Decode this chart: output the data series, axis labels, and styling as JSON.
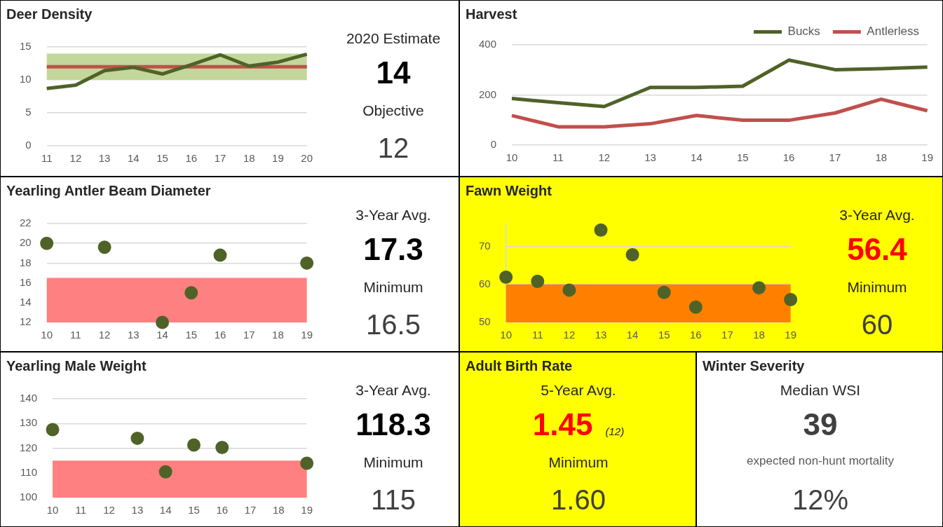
{
  "chart_data": [
    {
      "type": "line",
      "title": "Deer Density",
      "categories": [
        "11",
        "12",
        "13",
        "14",
        "15",
        "16",
        "17",
        "18",
        "19",
        "20"
      ],
      "series": [
        {
          "color": "#4f6228",
          "values": [
            8.7,
            9.2,
            11.4,
            11.9,
            10.9,
            12.3,
            13.8,
            12.1,
            12.7,
            13.9
          ]
        }
      ],
      "ylim": [
        0,
        15
      ],
      "yticks": [
        0,
        5,
        10,
        15
      ],
      "grid": "y",
      "marker": "none",
      "legend": false,
      "bands": [
        {
          "axis": "y",
          "from": 10,
          "to": 14,
          "color": "#c3d69b"
        }
      ],
      "ref_lines": [
        {
          "axis": "y",
          "value": 12,
          "color": "#c0504d"
        }
      ],
      "annotations": [
        "2020 Estimate",
        "14",
        "Objective",
        "12"
      ]
    },
    {
      "type": "line",
      "title": "Harvest",
      "categories": [
        "10",
        "11",
        "12",
        "13",
        "14",
        "15",
        "16",
        "17",
        "18",
        "19"
      ],
      "series": [
        {
          "name": "Bucks",
          "color": "#4f6228",
          "values": [
            186,
            169,
            154,
            230,
            230,
            235,
            339,
            301,
            305,
            311
          ]
        },
        {
          "name": "Antlerless",
          "color": "#c0504d",
          "values": [
            118,
            73,
            73,
            85,
            118,
            99,
            99,
            128,
            183,
            137
          ]
        }
      ],
      "ylim": [
        0,
        400
      ],
      "yticks": [
        0,
        200,
        400
      ],
      "grid": "y",
      "marker": "none",
      "legend": "top right"
    },
    {
      "type": "scatter",
      "title": "Yearling Antler Beam Diameter",
      "categories": [
        "10",
        "11",
        "12",
        "13",
        "14",
        "15",
        "16",
        "17",
        "18",
        "19"
      ],
      "series": [
        {
          "color": "#4f6228",
          "values": [
            20.0,
            null,
            19.6,
            null,
            12.0,
            15.0,
            18.8,
            null,
            null,
            18.0
          ]
        }
      ],
      "ylim": [
        12,
        22
      ],
      "yticks": [
        12,
        14,
        16,
        18,
        20,
        22
      ],
      "grid": "y",
      "marker": "circle",
      "legend": false,
      "bands": [
        {
          "axis": "y",
          "from": 12,
          "to": 16.5,
          "color": "#ff8080"
        }
      ],
      "annotations": [
        "3-Year Avg.",
        "17.3",
        "Minimum",
        "16.5"
      ]
    },
    {
      "type": "scatter",
      "title": "Fawn Weight",
      "categories": [
        "10",
        "11",
        "12",
        "13",
        "14",
        "15",
        "16",
        "17",
        "18",
        "19"
      ],
      "series": [
        {
          "color": "#4f6228",
          "values": [
            61.9,
            60.8,
            58.5,
            74.3,
            67.8,
            57.9,
            54.0,
            null,
            59.1,
            56.0
          ]
        }
      ],
      "ylim": [
        50,
        76
      ],
      "yticks": [
        50,
        60,
        70
      ],
      "grid": "y",
      "marker": "circle",
      "legend": false,
      "bands": [
        {
          "axis": "y",
          "from": 50,
          "to": 60,
          "color": "#ff8000"
        }
      ],
      "annotations": [
        "3-Year Avg.",
        "56.4",
        "Minimum",
        "60"
      ]
    },
    {
      "type": "scatter",
      "title": "Yearling Male Weight",
      "categories": [
        "10",
        "11",
        "12",
        "13",
        "14",
        "15",
        "16",
        "17",
        "18",
        "19"
      ],
      "series": [
        {
          "color": "#4f6228",
          "values": [
            127.5,
            null,
            null,
            124.0,
            110.4,
            121.3,
            120.3,
            null,
            null,
            113.9
          ]
        }
      ],
      "ylim": [
        100,
        140
      ],
      "yticks": [
        100,
        110,
        120,
        130,
        140
      ],
      "grid": "y",
      "marker": "circle",
      "legend": false,
      "bands": [
        {
          "axis": "y",
          "from": 100,
          "to": 115,
          "color": "#ff8080"
        }
      ],
      "annotations": [
        "3-Year Avg.",
        "118.3",
        "Minimum",
        "115"
      ]
    },
    {
      "type": "other",
      "title": "Adult Birth Rate",
      "annotations": [
        "5-Year Avg.",
        "1.45",
        "(12)",
        "Minimum",
        "1.60"
      ]
    },
    {
      "type": "other",
      "title": "Winter Severity",
      "annotations": [
        "Median WSI",
        "39",
        "expected non-hunt mortality",
        "12%"
      ]
    }
  ]
}
